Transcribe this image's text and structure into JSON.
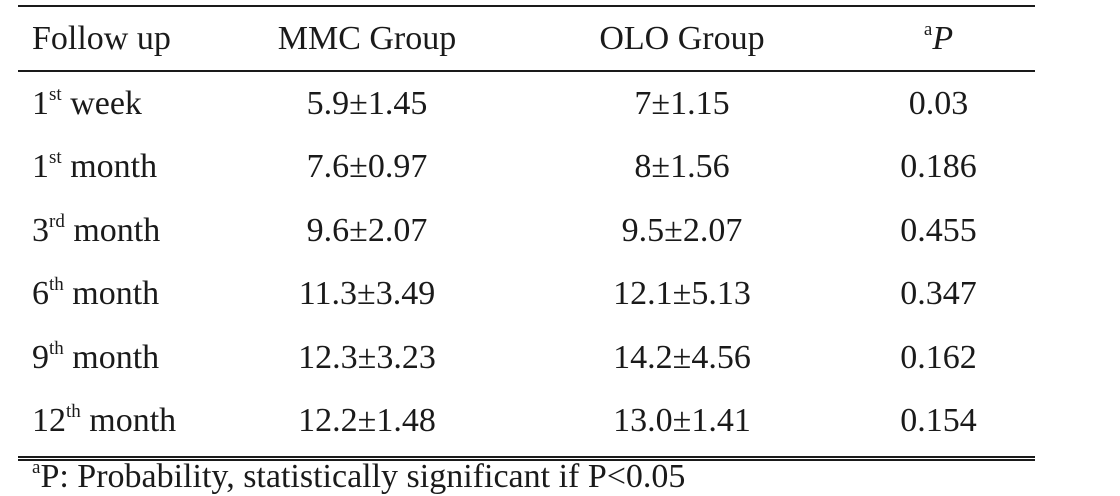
{
  "table": {
    "headers": {
      "follow_up": "Follow up",
      "mmc": "MMC Group",
      "olo": "OLO Group",
      "p_sup": "a",
      "p": "P"
    },
    "rows": [
      {
        "num": "1",
        "sup": "st",
        "unit": "week",
        "mmc": "5.9±1.45",
        "olo": "7±1.15",
        "p": "0.03"
      },
      {
        "num": "1",
        "sup": "st",
        "unit": "month",
        "mmc": "7.6±0.97",
        "olo": "8±1.56",
        "p": "0.186"
      },
      {
        "num": "3",
        "sup": "rd",
        "unit": "month",
        "mmc": "9.6±2.07",
        "olo": "9.5±2.07",
        "p": "0.455"
      },
      {
        "num": "6",
        "sup": "th",
        "unit": "month",
        "mmc": "11.3±3.49",
        "olo": "12.1±5.13",
        "p": "0.347"
      },
      {
        "num": "9",
        "sup": "th",
        "unit": "month",
        "mmc": "12.3±3.23",
        "olo": "14.2±4.56",
        "p": "0.162"
      },
      {
        "num": "12",
        "sup": "th",
        "unit": "month",
        "mmc": "12.2±1.48",
        "olo": "13.0±1.41",
        "p": "0.154"
      }
    ]
  },
  "footnote": {
    "sup": "a",
    "text": "P: Probability, statistically significant if P<0.05"
  }
}
